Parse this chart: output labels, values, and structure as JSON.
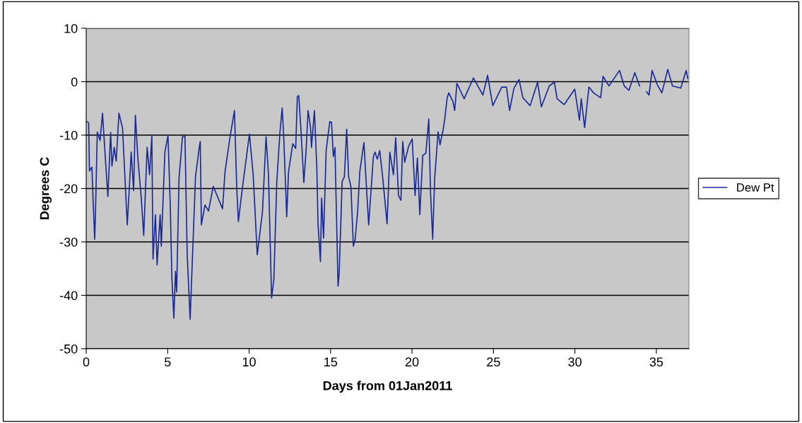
{
  "chart_data": {
    "type": "line",
    "xlabel": "Days from 01Jan2011",
    "ylabel": "Degrees C",
    "xlim": [
      0,
      37
    ],
    "xticks": [
      0,
      5,
      10,
      15,
      20,
      25,
      30,
      35
    ],
    "ylim": [
      -50,
      10
    ],
    "yticks": [
      -50,
      -40,
      -30,
      -20,
      -10,
      0,
      10
    ],
    "grid": "y",
    "legend": "right",
    "marker": "none",
    "line_style": "solid",
    "series": [
      {
        "name": "Dew Pt",
        "color": "#1a2a98",
        "x": [
          0.0,
          0.15,
          0.2,
          0.35,
          0.42,
          0.52,
          0.56,
          0.68,
          0.85,
          1.0,
          1.21,
          1.33,
          1.5,
          1.58,
          1.72,
          1.84,
          2.01,
          2.23,
          2.52,
          2.66,
          2.76,
          2.91,
          3.02,
          3.17,
          3.38,
          3.53,
          3.74,
          3.89,
          4.03,
          4.1,
          4.25,
          4.35,
          4.54,
          4.61,
          4.83,
          5.02,
          5.16,
          5.26,
          5.38,
          5.48,
          5.55,
          5.7,
          5.91,
          6.06,
          6.2,
          6.38,
          6.49,
          6.71,
          6.93,
          7.0,
          7.07,
          7.29,
          7.51,
          7.8,
          8.37,
          8.52,
          8.81,
          9.1,
          9.24,
          9.34,
          9.6,
          10.02,
          10.25,
          10.5,
          10.82,
          11.04,
          11.19,
          11.38,
          11.52,
          11.7,
          11.89,
          12.03,
          12.13,
          12.31,
          12.42,
          12.68,
          12.86,
          12.96,
          13.05,
          13.19,
          13.36,
          13.51,
          13.62,
          13.77,
          13.83,
          14.01,
          14.16,
          14.23,
          14.38,
          14.45,
          14.57,
          14.73,
          14.95,
          15.06,
          15.17,
          15.27,
          15.46,
          15.53,
          15.71,
          15.85,
          15.99,
          16.11,
          16.25,
          16.4,
          16.51,
          16.66,
          16.8,
          17.05,
          17.15,
          17.34,
          17.63,
          17.73,
          17.87,
          18.02,
          18.21,
          18.47,
          18.64,
          18.86,
          19.0,
          19.17,
          19.32,
          19.43,
          19.55,
          19.79,
          20.01,
          20.19,
          20.33,
          20.48,
          20.66,
          20.85,
          21.03,
          21.14,
          21.27,
          21.39,
          21.6,
          21.72,
          21.9,
          22.01,
          22.16,
          22.26,
          22.51,
          22.62,
          22.76,
          23.2,
          23.77,
          24.35,
          24.64,
          24.96,
          25.51,
          25.8,
          25.99,
          26.26,
          26.57,
          26.81,
          27.25,
          27.71,
          27.94,
          28.43,
          28.74,
          28.91,
          29.34,
          29.99,
          30.28,
          30.39,
          30.6,
          30.86,
          31.15,
          31.58,
          31.73,
          32.09,
          32.74,
          33.03,
          33.32,
          33.68,
          33.97,
          34.2,
          34.4,
          34.55,
          34.74,
          35.05,
          35.34,
          35.7,
          35.99,
          36.5,
          36.83,
          36.93
        ],
        "values": [
          -7.4,
          -7.7,
          -16.7,
          -16,
          -22,
          -29.5,
          -25.7,
          -9.4,
          -11,
          -5.9,
          -16,
          -21.5,
          -9.5,
          -15.8,
          -12.3,
          -14.9,
          -5.9,
          -8.7,
          -26.8,
          -19.1,
          -13.2,
          -20.4,
          -6.3,
          -14.3,
          -21.8,
          -28.8,
          -12.3,
          -17.4,
          -10.1,
          -33.2,
          -24.9,
          -34.3,
          -24.9,
          -30.8,
          -13.2,
          -10.1,
          -23.1,
          -36.8,
          -44.3,
          -35.5,
          -39.4,
          -18,
          -10.3,
          -10.2,
          -32.4,
          -44.5,
          -35.5,
          -17.8,
          -12.5,
          -11.2,
          -26.8,
          -23.1,
          -24.2,
          -19.6,
          -23.8,
          -16.9,
          -10.7,
          -5.4,
          -19.8,
          -26.2,
          -19.6,
          -9.8,
          -17.4,
          -32.4,
          -24.4,
          -10.3,
          -17.4,
          -40.5,
          -37,
          -18.7,
          -9.6,
          -4.9,
          -10.7,
          -25.3,
          -16.9,
          -11.6,
          -12.5,
          -2.8,
          -2.6,
          -9.4,
          -18.9,
          -12.3,
          -5.4,
          -8.5,
          -12.3,
          -5.4,
          -16.5,
          -26.6,
          -33.7,
          -21.8,
          -29.3,
          -12.9,
          -7.5,
          -7.6,
          -14,
          -12.3,
          -38.3,
          -35.9,
          -18.7,
          -17.8,
          -8.9,
          -17.8,
          -19.6,
          -30.8,
          -29.5,
          -24.4,
          -16.7,
          -11.4,
          -16.9,
          -26.8,
          -14,
          -13.2,
          -14.5,
          -12.9,
          -18.2,
          -26.6,
          -13.2,
          -17.4,
          -10.5,
          -21.3,
          -22.2,
          -11.2,
          -15.1,
          -12.1,
          -10.7,
          -21.3,
          -14.3,
          -24.9,
          -13.8,
          -13.4,
          -7,
          -20.9,
          -29.5,
          -18.2,
          -9.4,
          -11.8,
          -9.2,
          -7,
          -3,
          -2.1,
          -3.7,
          -5.4,
          -0.3,
          -3.2,
          0.7,
          -2.5,
          1.2,
          -4.5,
          -1,
          -1,
          -5.4,
          -1.2,
          0.4,
          -3,
          -4.5,
          -0.1,
          -4.7,
          -0.8,
          -0.1,
          -3.2,
          -4.3,
          -1.4,
          -7.2,
          -3.2,
          -8.6,
          -1,
          -2.1,
          -3,
          1,
          -0.8,
          2.1,
          -0.8,
          -1.6,
          1.7,
          -0.8,
          null,
          -1.9,
          -2.5,
          2.1,
          -0.5,
          -2.1,
          2.3,
          -0.8,
          -1.2,
          2.1,
          0.6
        ]
      }
    ]
  }
}
